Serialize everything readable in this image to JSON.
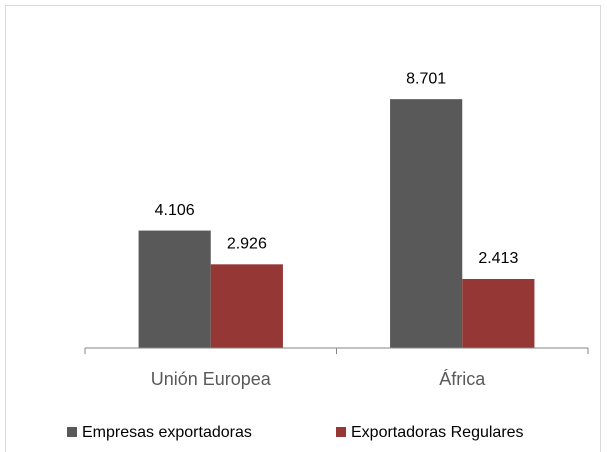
{
  "chart_data": {
    "type": "bar",
    "categories": [
      "Unión Europea",
      "África"
    ],
    "series": [
      {
        "name": "Empresas exportadoras",
        "color": "#595959",
        "values": [
          4106,
          8701
        ],
        "value_labels": [
          "4.106",
          "8.701"
        ]
      },
      {
        "name": "Exportadoras Regulares",
        "color": "#953735",
        "values": [
          2926,
          2413
        ],
        "value_labels": [
          "2.926",
          "2.413"
        ]
      }
    ],
    "ylim": [
      0,
      10000
    ],
    "legend": "bottom"
  }
}
